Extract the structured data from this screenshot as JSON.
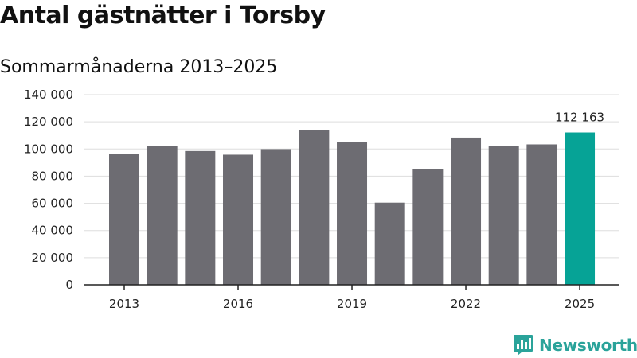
{
  "header": {
    "title": "Antal gästnätter i Torsby",
    "subtitle": "Sommarmånaderna 2013–2025"
  },
  "brand": {
    "name": "Newsworthy",
    "icon": "bar-chart-speech-bubble-icon"
  },
  "chart_data": {
    "type": "bar",
    "title": "Antal gästnätter i Torsby",
    "subtitle": "Sommarmånaderna 2013–2025",
    "xlabel": "",
    "ylabel": "",
    "categories": [
      "2013",
      "2014",
      "2015",
      "2016",
      "2017",
      "2018",
      "2019",
      "2020",
      "2021",
      "2022",
      "2023",
      "2024",
      "2025"
    ],
    "values": [
      96500,
      102500,
      98500,
      95800,
      99900,
      113800,
      105000,
      60500,
      85400,
      108400,
      102500,
      103400,
      112163
    ],
    "ylim": [
      0,
      140000
    ],
    "yticks": [
      0,
      20000,
      40000,
      60000,
      80000,
      100000,
      120000,
      140000
    ],
    "ytick_labels": [
      "0",
      "20 000",
      "40 000",
      "60 000",
      "80 000",
      "100 000",
      "120 000",
      "140 000"
    ],
    "xtick_labels": [
      "2013",
      "2016",
      "2019",
      "2022",
      "2025"
    ],
    "data_labels": [
      {
        "category": "2025",
        "text": "112 163"
      }
    ],
    "grid": true,
    "colors": {
      "default": "#6d6c72",
      "highlight": "#06a396",
      "grid": "#dddddd",
      "axis": "#222222"
    },
    "highlight_category": "2025"
  }
}
